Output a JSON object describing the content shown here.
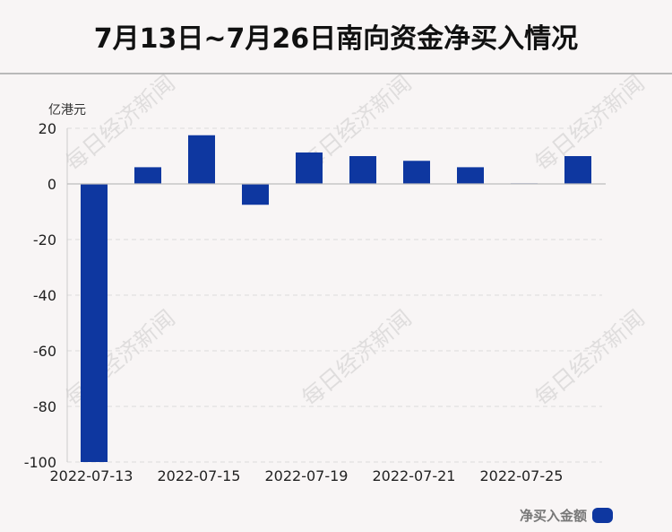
{
  "title": "7月13日~7月26日南向资金净买入情况",
  "unit_label": "亿港元",
  "watermark_text": "每日经济新闻",
  "legend": {
    "label": "净买入金额",
    "color": "#0e37a0"
  },
  "chart_data": {
    "type": "bar",
    "title": "7月13日~7月26日南向资金净买入情况",
    "ylabel": "亿港元",
    "xlabel": "",
    "ylim": [
      -100,
      20
    ],
    "yticks": [
      20,
      0,
      -20,
      -40,
      -60,
      -80,
      -100
    ],
    "grid": true,
    "legend_position": "bottom-right",
    "categories": [
      "2022-07-13",
      "2022-07-14",
      "2022-07-15",
      "2022-07-18",
      "2022-07-19",
      "2022-07-20",
      "2022-07-21",
      "2022-07-22",
      "2022-07-25",
      "2022-07-26"
    ],
    "xtick_labels": [
      "2022-07-13",
      "2022-07-15",
      "2022-07-19",
      "2022-07-21",
      "2022-07-25"
    ],
    "series": [
      {
        "name": "净买入金额",
        "color": "#0e37a0",
        "values": [
          -100.0,
          6.0,
          17.5,
          -7.5,
          11.3,
          10.0,
          8.3,
          6.0,
          0.2,
          10.0
        ]
      }
    ]
  }
}
